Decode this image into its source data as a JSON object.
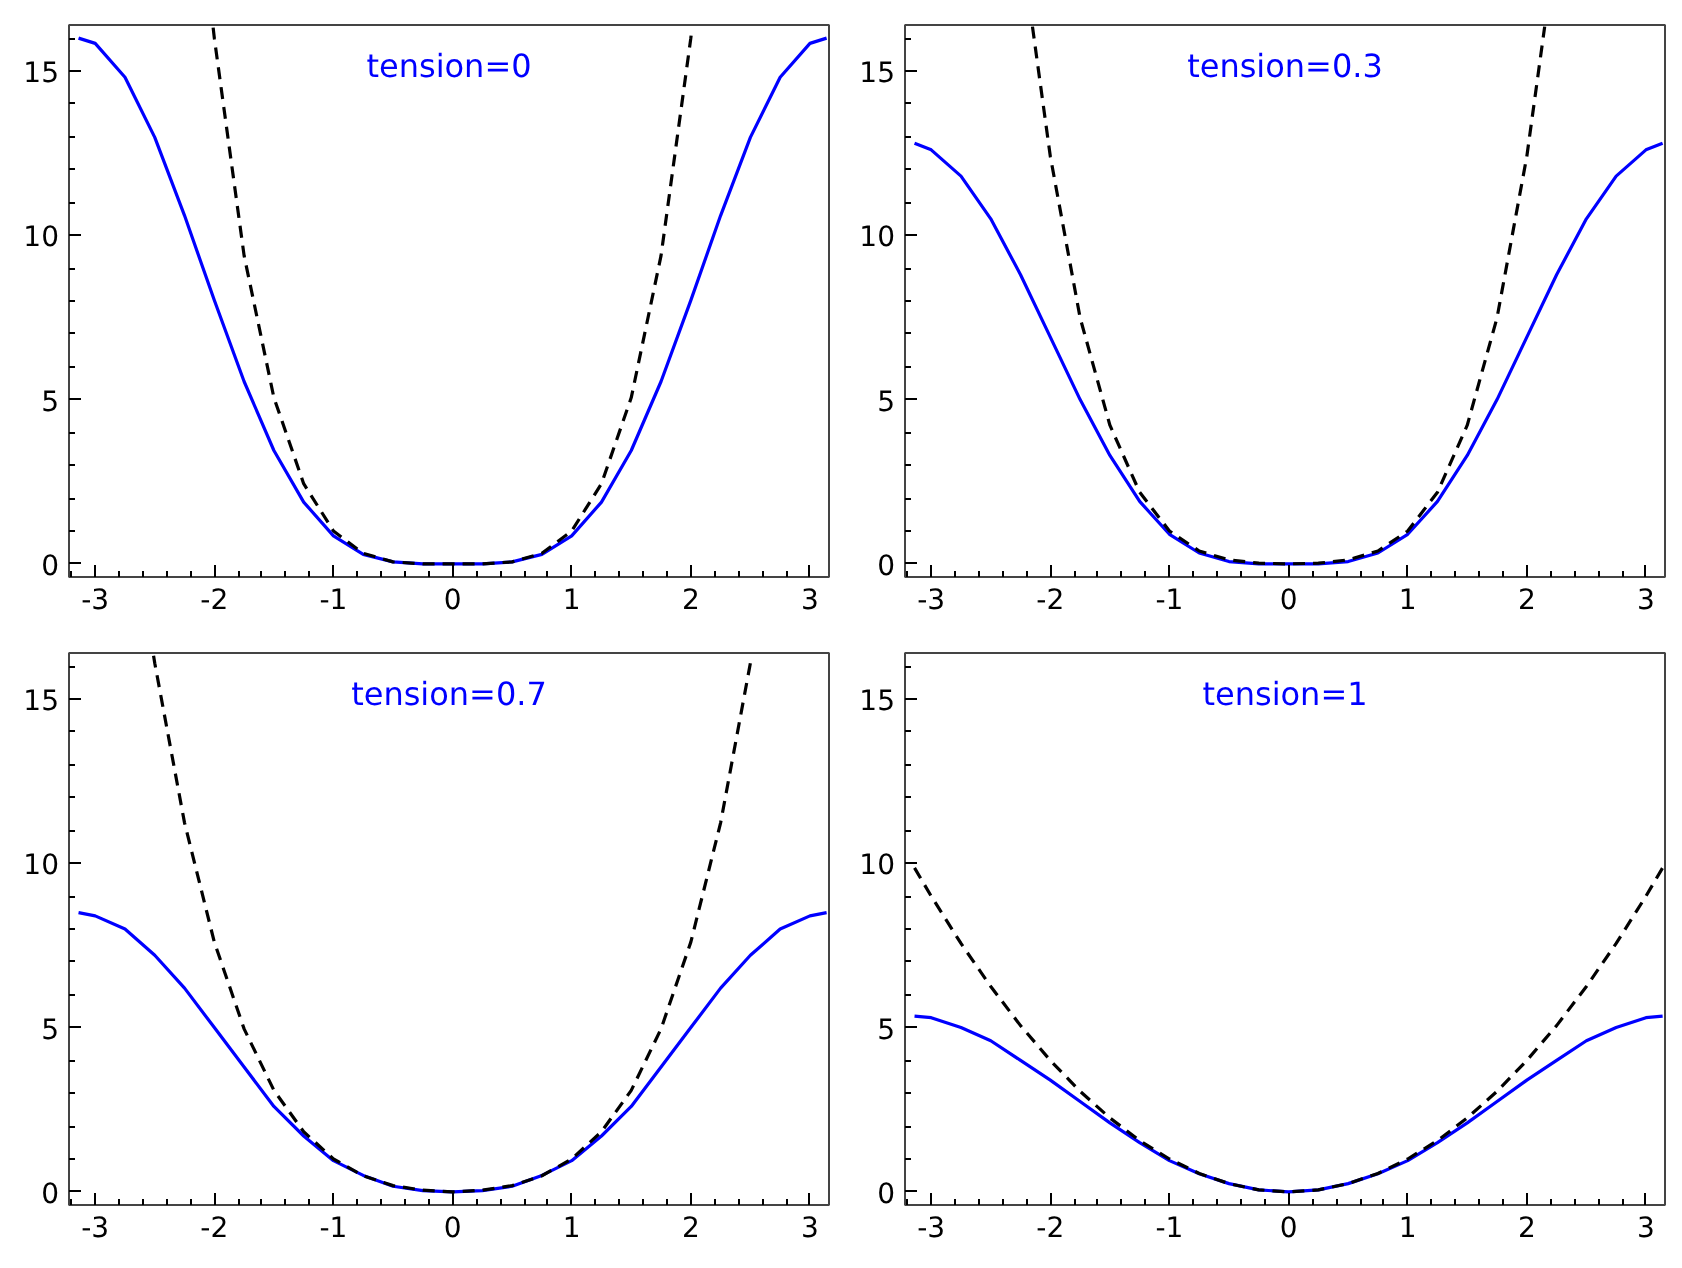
{
  "chart_data": [
    {
      "type": "line",
      "annotations": [
        "tension=0"
      ],
      "xlim": [
        -3.22,
        3.16
      ],
      "ylim": [
        -0.4,
        16.4
      ],
      "xticks": [
        -3,
        -2,
        -1,
        0,
        1,
        2,
        3
      ],
      "yticks": [
        0,
        5,
        10,
        15
      ],
      "grid": false,
      "series": [
        {
          "color": "#0000ff",
          "line_style": "solid",
          "x": [
            -3.14,
            -3,
            -2.75,
            -2.5,
            -2.25,
            -2,
            -1.75,
            -1.5,
            -1.25,
            -1,
            -0.75,
            -0.5,
            -0.25,
            0,
            0.25,
            0.5,
            0.75,
            1,
            1.25,
            1.5,
            1.75,
            2,
            2.25,
            2.5,
            2.75,
            3,
            3.14
          ],
          "values": [
            16,
            15.84,
            14.81,
            12.98,
            10.6,
            8.02,
            5.55,
            3.45,
            1.88,
            0.85,
            0.29,
            0.06,
            0,
            0,
            0,
            0.06,
            0.29,
            0.85,
            1.88,
            3.45,
            5.55,
            8.02,
            10.6,
            12.98,
            14.81,
            15.84,
            16
          ]
        },
        {
          "color": "#000000",
          "line_style": "dashed",
          "x": [
            -2.01,
            -2,
            -1.75,
            -1.5,
            -1.25,
            -1,
            -0.75,
            -0.5,
            -0.25,
            0,
            0.25,
            0.5,
            0.75,
            1,
            1.25,
            1.5,
            1.75,
            2,
            2.01
          ],
          "values": [
            16.32,
            16,
            9.38,
            5.06,
            2.44,
            1,
            0.32,
            0.06,
            0,
            0,
            0,
            0.06,
            0.32,
            1,
            2.44,
            5.06,
            9.38,
            16,
            16.32
          ]
        }
      ]
    },
    {
      "type": "line",
      "annotations": [
        "tension=0.3"
      ],
      "xlim": [
        -3.22,
        3.16
      ],
      "ylim": [
        -0.4,
        16.4
      ],
      "xticks": [
        -3,
        -2,
        -1,
        0,
        1,
        2,
        3
      ],
      "yticks": [
        0,
        5,
        10,
        15
      ],
      "grid": false,
      "series": [
        {
          "color": "#0000ff",
          "line_style": "solid",
          "x": [
            -3.14,
            -3,
            -2.75,
            -2.5,
            -2.25,
            -2,
            -1.75,
            -1.5,
            -1.25,
            -1,
            -0.75,
            -0.5,
            -0.25,
            0,
            0.25,
            0.5,
            0.75,
            1,
            1.25,
            1.5,
            1.75,
            2,
            2.25,
            2.5,
            2.75,
            3,
            3.14
          ],
          "values": [
            12.8,
            12.6,
            11.8,
            10.5,
            8.8,
            6.9,
            5,
            3.3,
            1.9,
            0.9,
            0.33,
            0.07,
            0,
            0,
            0,
            0.07,
            0.33,
            0.9,
            1.9,
            3.3,
            5,
            6.9,
            8.8,
            10.5,
            11.8,
            12.6,
            12.8
          ]
        },
        {
          "color": "#000000",
          "line_style": "dashed",
          "x": [
            -2.15,
            -2,
            -1.75,
            -1.5,
            -1.25,
            -1,
            -0.75,
            -0.5,
            -0.25,
            0,
            0.25,
            0.5,
            0.75,
            1,
            1.25,
            1.5,
            1.75,
            2,
            2.15
          ],
          "values": [
            16.35,
            12.4,
            7.49,
            4.22,
            2.18,
            1,
            0.39,
            0.12,
            0.02,
            0,
            0.02,
            0.12,
            0.39,
            1,
            2.18,
            4.22,
            7.49,
            12.4,
            16.35
          ]
        }
      ]
    },
    {
      "type": "line",
      "annotations": [
        "tension=0.7"
      ],
      "xlim": [
        -3.22,
        3.16
      ],
      "ylim": [
        -0.4,
        16.4
      ],
      "xticks": [
        -3,
        -2,
        -1,
        0,
        1,
        2,
        3
      ],
      "yticks": [
        0,
        5,
        10,
        15
      ],
      "grid": false,
      "series": [
        {
          "color": "#0000ff",
          "line_style": "solid",
          "x": [
            -3.14,
            -3,
            -2.75,
            -2.5,
            -2.25,
            -2,
            -1.75,
            -1.5,
            -1.25,
            -1,
            -0.75,
            -0.5,
            -0.25,
            0,
            0.25,
            0.5,
            0.75,
            1,
            1.25,
            1.5,
            1.75,
            2,
            2.25,
            2.5,
            2.75,
            3,
            3.14
          ],
          "values": [
            8.5,
            8.4,
            8,
            7.2,
            6.2,
            5,
            3.8,
            2.6,
            1.7,
            0.95,
            0.5,
            0.17,
            0.04,
            0,
            0.04,
            0.17,
            0.5,
            0.95,
            1.7,
            2.6,
            3.8,
            5,
            6.2,
            7.2,
            8,
            8.4,
            8.5
          ]
        },
        {
          "color": "#000000",
          "line_style": "dashed",
          "x": [
            -2.51,
            -2.5,
            -2.25,
            -2,
            -1.75,
            -1.5,
            -1.25,
            -1,
            -0.75,
            -0.5,
            -0.25,
            0,
            0.25,
            0.5,
            0.75,
            1,
            1.25,
            1.5,
            1.75,
            2,
            2.25,
            2.5,
            2.51
          ],
          "values": [
            16.32,
            16.09,
            11.23,
            7.6,
            4.96,
            3.09,
            1.83,
            1,
            0.49,
            0.19,
            0.05,
            0,
            0.05,
            0.19,
            0.49,
            1,
            1.83,
            3.09,
            4.96,
            7.6,
            11.23,
            16.09,
            16.32
          ]
        }
      ]
    },
    {
      "type": "line",
      "annotations": [
        "tension=1"
      ],
      "xlim": [
        -3.22,
        3.16
      ],
      "ylim": [
        -0.4,
        16.4
      ],
      "xticks": [
        -3,
        -2,
        -1,
        0,
        1,
        2,
        3
      ],
      "yticks": [
        0,
        5,
        10,
        15
      ],
      "grid": false,
      "series": [
        {
          "color": "#0000ff",
          "line_style": "solid",
          "x": [
            -3.14,
            -3,
            -2.75,
            -2.5,
            -2.25,
            -2,
            -1.75,
            -1.5,
            -1.25,
            -1,
            -0.75,
            -0.5,
            -0.25,
            0,
            0.25,
            0.5,
            0.75,
            1,
            1.25,
            1.5,
            1.75,
            2,
            2.25,
            2.5,
            2.75,
            3,
            3.14
          ],
          "values": [
            5.35,
            5.3,
            5,
            4.6,
            4,
            3.4,
            2.75,
            2.1,
            1.5,
            0.95,
            0.55,
            0.25,
            0.06,
            0,
            0.06,
            0.25,
            0.55,
            0.95,
            1.5,
            2.1,
            2.75,
            3.4,
            4,
            4.6,
            5,
            5.3,
            5.35
          ]
        },
        {
          "color": "#000000",
          "line_style": "dashed",
          "x": [
            -3.14,
            -3,
            -2.75,
            -2.5,
            -2.25,
            -2,
            -1.75,
            -1.5,
            -1.25,
            -1,
            -0.75,
            -0.5,
            -0.25,
            0,
            0.25,
            0.5,
            0.75,
            1,
            1.25,
            1.5,
            1.75,
            2,
            2.25,
            2.5,
            2.75,
            3,
            3.14
          ],
          "values": [
            9.86,
            9,
            7.56,
            6.25,
            5.06,
            4,
            3.06,
            2.25,
            1.56,
            1,
            0.56,
            0.25,
            0.06,
            0,
            0.06,
            0.25,
            0.56,
            1,
            1.56,
            2.25,
            3.06,
            4,
            5.06,
            6.25,
            7.56,
            9,
            9.86
          ]
        }
      ]
    }
  ]
}
